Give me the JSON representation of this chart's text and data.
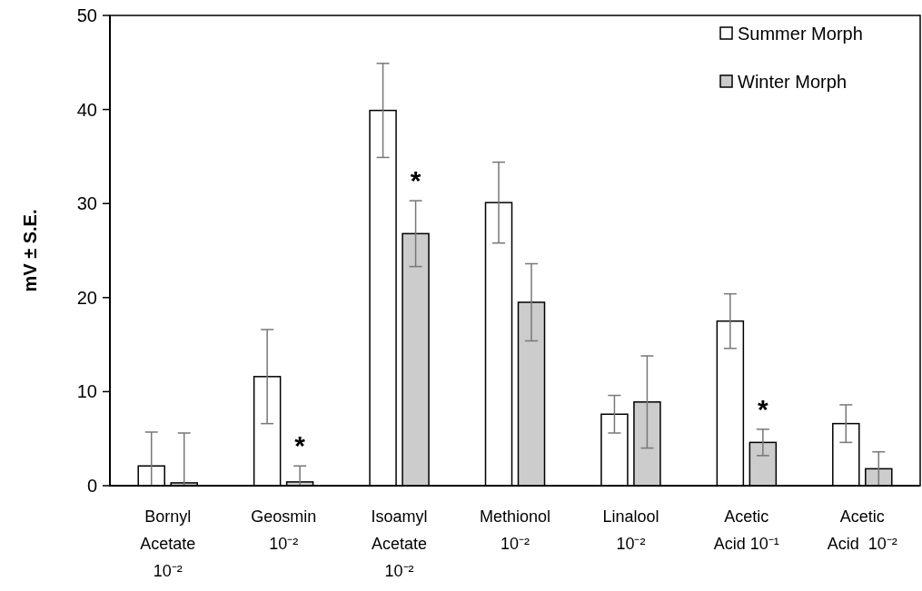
{
  "chart_data": {
    "type": "bar",
    "ylabel": "mV ± S.E.",
    "categories": [
      "Bornyl\nAcetate\n10⁻²",
      "Geosmin\n10⁻²",
      "Isoamyl\nAcetate\n10⁻²",
      "Methionol\n10⁻²",
      "Linalool\n10⁻²",
      "Acetic\nAcid 10⁻¹",
      "Acetic\nAcid  10⁻²"
    ],
    "series": [
      {
        "name": "Summer Morph",
        "color": "#ffffff",
        "values": [
          2.1,
          11.6,
          39.9,
          30.1,
          7.6,
          17.5,
          6.6
        ],
        "errors": [
          3.6,
          5.0,
          5.0,
          4.3,
          2.0,
          2.9,
          2.0
        ]
      },
      {
        "name": "Winter Morph",
        "color": "#cccccc",
        "values": [
          0.3,
          0.4,
          26.8,
          19.5,
          8.9,
          4.6,
          1.8
        ],
        "errors": [
          5.3,
          1.7,
          3.5,
          4.1,
          4.9,
          1.4,
          1.8
        ],
        "value_labels": [
          null,
          "*",
          "*",
          null,
          null,
          "*",
          null
        ]
      }
    ],
    "ylim": [
      0,
      50
    ],
    "yticks": [
      0,
      10,
      20,
      30,
      40,
      50
    ],
    "grid": false,
    "legend": "top right"
  }
}
